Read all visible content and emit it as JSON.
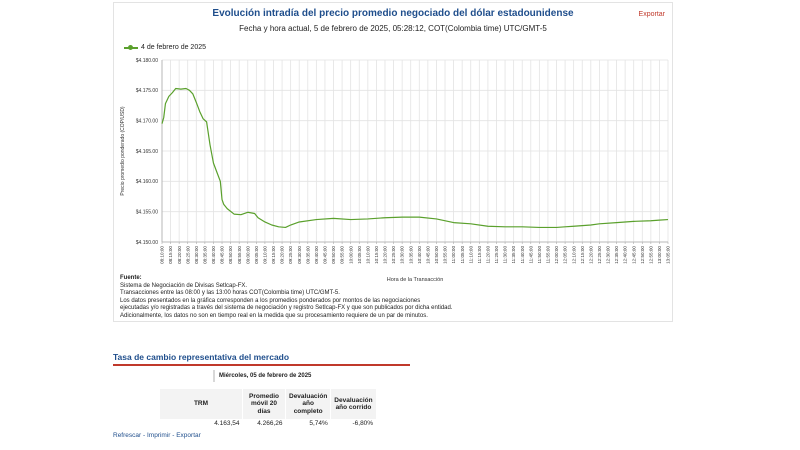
{
  "chart_panel": {
    "title": "Evolución intradía del precio promedio negociado del dólar estadounidense",
    "subtitle": "Fecha y hora actual, 5 de febrero de 2025, 05:28:12, COT(Colombia time) UTC/GMT-5",
    "export_label": "Exportar",
    "legend": "4 de febrero de 2025",
    "colors": {
      "line": "#5aa02c",
      "grid": "#e3e3e3",
      "axis": "#aaaaaa"
    },
    "source": {
      "title": "Fuente:",
      "lines": [
        "Sistema de Negociación de Divisas Setlcap-FX.",
        "Transacciones entre las 08:00 y las 13:00 horas COT(Colombia time) UTC/GMT-5.",
        "Los datos presentados en la gráfica corresponden a los promedios ponderados por montos de las negociaciones",
        "ejecutadas y/o registradas a través del sistema de negociación y registro SetIcap-FX y que son publicados por dicha entidad.",
        "Adicionalmente, los datos no son en tiempo real en la medida que su procesamiento requiere de un par de minutos."
      ]
    }
  },
  "chart_data": {
    "type": "line",
    "xlabel": "Hora de la Transacción",
    "ylabel": "Precio promedio ponderado (COP/USD)",
    "ylim": [
      4150,
      4180
    ],
    "yticks": [
      "$4.150.00",
      "$4.155.00",
      "$4.160.00",
      "$4.165.00",
      "$4.170.00",
      "$4.175.00",
      "$4.180.00"
    ],
    "grid": true,
    "legend_position": "top-left",
    "x": [
      "08:10:00",
      "08:15:00",
      "08:20:00",
      "08:25:00",
      "08:30:00",
      "08:35:00",
      "08:40:00",
      "08:45:00",
      "08:50:00",
      "08:55:00",
      "09:00:00",
      "09:05:00",
      "09:10:00",
      "09:15:00",
      "09:20:00",
      "09:25:00",
      "09:30:00",
      "09:35:00",
      "09:40:00",
      "09:45:00",
      "09:50:00",
      "09:55:00",
      "10:00:00",
      "10:05:00",
      "10:10:00",
      "10:15:00",
      "10:20:00",
      "10:25:00",
      "10:30:00",
      "10:35:00",
      "10:40:00",
      "10:45:00",
      "10:50:00",
      "10:55:00",
      "11:00:00",
      "11:05:00",
      "11:10:00",
      "11:15:00",
      "11:20:00",
      "11:25:00",
      "11:30:00",
      "11:35:00",
      "11:40:00",
      "11:45:00",
      "11:50:00",
      "11:55:00",
      "12:00:00",
      "12:05:00",
      "12:10:00",
      "12:15:00",
      "12:20:00",
      "12:25:00",
      "12:30:00",
      "12:35:00",
      "12:40:00",
      "12:45:00",
      "12:50:00",
      "12:55:00",
      "13:00:00",
      "13:05:00"
    ],
    "series": [
      {
        "name": "4 de febrero de 2025",
        "points": [
          [
            "08:10:00",
            4169.5
          ],
          [
            "08:11:00",
            4170.5
          ],
          [
            "08:12:00",
            4172.8
          ],
          [
            "08:14:00",
            4174.0
          ],
          [
            "08:16:00",
            4174.6
          ],
          [
            "08:18:00",
            4175.3
          ],
          [
            "08:21:00",
            4175.2
          ],
          [
            "08:24:00",
            4175.3
          ],
          [
            "08:26:00",
            4175.0
          ],
          [
            "08:28:00",
            4174.4
          ],
          [
            "08:30:00",
            4173.0
          ],
          [
            "08:32:00",
            4171.5
          ],
          [
            "08:34:00",
            4170.3
          ],
          [
            "08:36:00",
            4169.8
          ],
          [
            "08:38:00",
            4166.0
          ],
          [
            "08:40:00",
            4163.0
          ],
          [
            "08:42:00",
            4161.5
          ],
          [
            "08:44:00",
            4160.0
          ],
          [
            "08:45:00",
            4157.0
          ],
          [
            "08:46:00",
            4156.2
          ],
          [
            "08:48:00",
            4155.5
          ],
          [
            "08:52:00",
            4154.6
          ],
          [
            "08:56:00",
            4154.5
          ],
          [
            "09:00:00",
            4154.9
          ],
          [
            "09:04:00",
            4154.7
          ],
          [
            "09:06:00",
            4154.0
          ],
          [
            "09:10:00",
            4153.3
          ],
          [
            "09:14:00",
            4152.8
          ],
          [
            "09:18:00",
            4152.5
          ],
          [
            "09:22:00",
            4152.4
          ],
          [
            "09:25:00",
            4152.8
          ],
          [
            "09:30:00",
            4153.3
          ],
          [
            "09:40:00",
            4153.7
          ],
          [
            "09:50:00",
            4153.9
          ],
          [
            "10:00:00",
            4153.7
          ],
          [
            "10:10:00",
            4153.8
          ],
          [
            "10:20:00",
            4154.0
          ],
          [
            "10:30:00",
            4154.1
          ],
          [
            "10:40:00",
            4154.1
          ],
          [
            "10:50:00",
            4153.8
          ],
          [
            "11:00:00",
            4153.2
          ],
          [
            "11:10:00",
            4153.0
          ],
          [
            "11:20:00",
            4152.6
          ],
          [
            "11:30:00",
            4152.5
          ],
          [
            "11:40:00",
            4152.5
          ],
          [
            "11:50:00",
            4152.4
          ],
          [
            "12:00:00",
            4152.4
          ],
          [
            "12:05:00",
            4152.5
          ],
          [
            "12:10:00",
            4152.6
          ],
          [
            "12:20:00",
            4152.8
          ],
          [
            "12:25:00",
            4153.0
          ],
          [
            "12:35:00",
            4153.2
          ],
          [
            "12:45:00",
            4153.4
          ],
          [
            "12:55:00",
            4153.5
          ],
          [
            "13:00:00",
            4153.6
          ],
          [
            "13:05:00",
            4153.7
          ]
        ]
      }
    ]
  },
  "trm_section": {
    "heading": "Tasa de cambio representativa del mercado",
    "date": "Miércoles, 05 de febrero de 2025",
    "columns": [
      "TRM",
      "Promedio móvil 20 días",
      "Devaluación año completo",
      "Devaluación año corrido"
    ],
    "values": [
      "4.163,54",
      "4.266,26",
      "5,74%",
      "-6,80%"
    ]
  },
  "links": {
    "refresh": "Refrescar",
    "print": "Imprimir",
    "export": "Exportar",
    "separator": " - "
  }
}
